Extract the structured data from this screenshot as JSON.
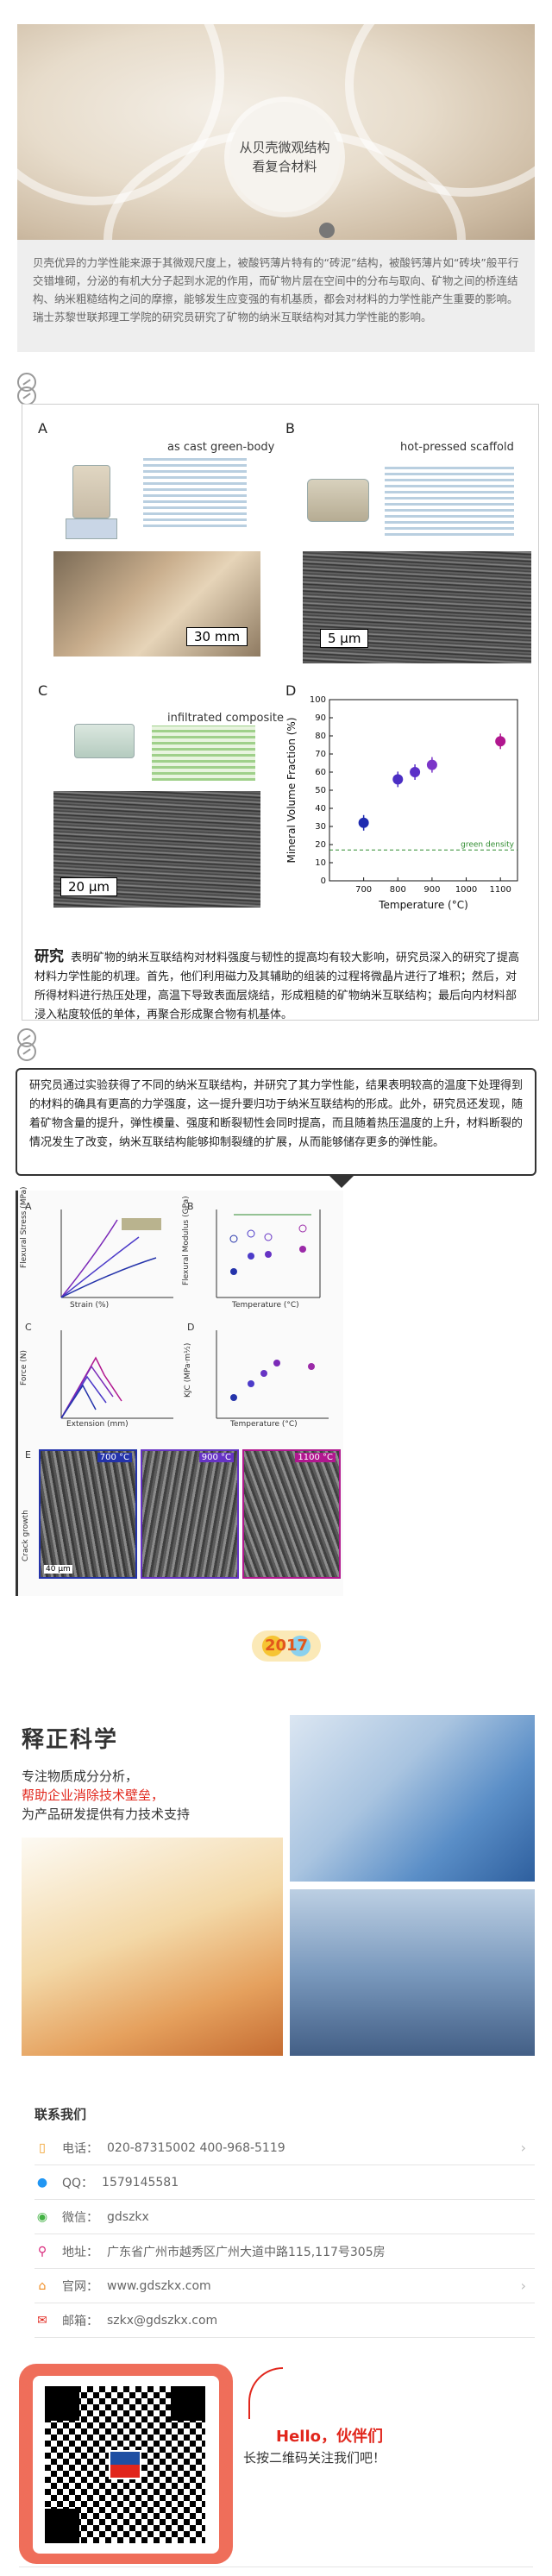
{
  "hero": {
    "badge_line1": "从贝壳微观结构",
    "badge_line2": "看复合材料"
  },
  "intro": {
    "text": "贝壳优异的力学性能来源于其微观尺度上，被酸钙薄片特有的“砖泥”结构，被酸钙薄片如“砖块”般平行交错堆砌，分泌的有机大分子起到水泥的作用，而矿物片层在空间中的分布与取向、矿物之间的桥连结构、纳米粗糙结构之间的摩擦，能够发生应变强的有机基质，都会对材料的力学性能产生重要的影响。瑞士苏黎世联邦理工学院的研究员研究了矿物的纳米互联结构对其力学性能的影响。"
  },
  "figure1": {
    "panels": {
      "a_letter": "A",
      "a_title": "as cast green-body",
      "a_scale": "30 mm",
      "b_letter": "B",
      "b_title": "hot-pressed scaffold",
      "b_scale": "5 μm",
      "c_letter": "C",
      "c_title": "infiltrated composite",
      "c_scale": "20 μm",
      "d_letter": "D"
    },
    "caption_lead": "研究",
    "caption": "表明矿物的纳米互联结构对材料强度与韧性的提高均有较大影响，研究员深入的研究了提高材料力学性能的机理。首先，他们利用磁力及其辅助的组装的过程将微晶片进行了堆积；然后，对所得材料进行热压处理，高温下导致表面层烧结，形成粗糙的矿物纳米互联结构；最后向内材料部浸入粘度较低的单体，再聚合形成聚合物有机基体。"
  },
  "chart_data": {
    "type": "scatter",
    "xlabel": "Temperature (°C)",
    "ylabel": "Mineral Volume Fraction (%)",
    "xlim": [
      600,
      1150
    ],
    "ylim": [
      0,
      100
    ],
    "xticks": [
      700,
      800,
      900,
      1000,
      1100
    ],
    "yticks": [
      0,
      10,
      20,
      30,
      40,
      50,
      60,
      70,
      80,
      90,
      100
    ],
    "x": [
      700,
      800,
      850,
      900,
      1100
    ],
    "values": [
      32,
      56,
      60,
      64,
      77
    ],
    "colors": [
      "#1f2bb0",
      "#4b2ec4",
      "#5b30c8",
      "#7b35c8",
      "#b1178f"
    ],
    "reference_line": {
      "label": "green density",
      "value": 17,
      "color": "#2e8b2e"
    },
    "grid": false
  },
  "quote": {
    "text": "研究员通过实验获得了不同的纳米互联结构，并研究了其力学性能，结果表明较高的温度下处理得到的材料的确具有更高的力学强度，这一提升要归功于纳米互联结构的形成。此外，研究员还发现，随着矿物含量的提升，弹性模量、强度和断裂韧性会同时提高，而且随着热压温度的上升，材料断裂的情况发生了改变，纳米互联结构能够抑制裂缝的扩展，从而能够储存更多的弹性能。"
  },
  "figure2": {
    "a": "A",
    "b": "B",
    "c": "C",
    "d": "D",
    "e": "E",
    "a_ylabel": "Flexural Stress (MPa)",
    "a_xlabel": "Strain (%)",
    "b_ylabel": "Flexural Modulus (GPa)",
    "b_xlabel": "Temperature (°C)",
    "c_ylabel": "Force (N)",
    "c_xlabel": "Extension (mm)",
    "d_ylabel": "KJC (MPa·m½)",
    "d_xlabel": "Temperature (°C)",
    "e_label1": "700 °C",
    "e_label2": "900 °C",
    "e_label3": "1100 °C",
    "e_side": "Crack growth",
    "e_scale": "40 μm"
  },
  "logo": {
    "text": "2017"
  },
  "company": {
    "name": "释正科学",
    "tag1": "专注物质成分分析，",
    "tag2": "帮助企业消除技术壁垒，",
    "tag3": "为产品研发提供有力技术支持"
  },
  "contact": {
    "title": "联系我们",
    "rows": [
      {
        "label": "电话：",
        "value": "020-87315002  400-968-5119"
      },
      {
        "label": "QQ：",
        "value": "1579145581"
      },
      {
        "label": "微信：",
        "value": "gdszkx"
      },
      {
        "label": "地址：",
        "value": "广东省广州市越秀区广州大道中路115,117号305房"
      },
      {
        "label": "官网：",
        "value": "www.gdszkx.com"
      },
      {
        "label": "邮箱：",
        "value": "szkx@gdszkx.com"
      }
    ]
  },
  "qr": {
    "hello": "Hello，伙伴们",
    "sub": "长按二维码关注我们吧！"
  },
  "colors": {
    "accent_red": "#e1261c",
    "qr_frame": "#ef6e5a",
    "icon_orange": "#f09a1e"
  }
}
